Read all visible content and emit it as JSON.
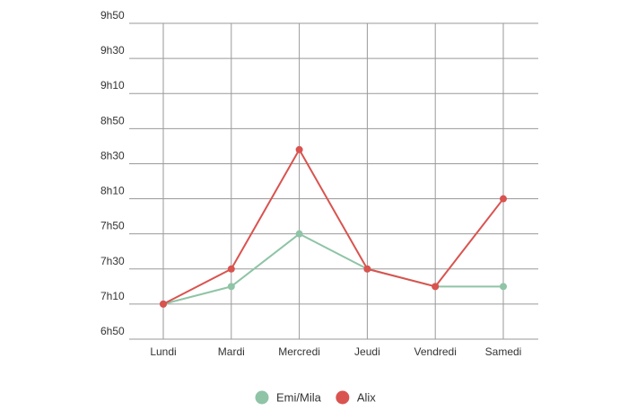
{
  "chart_data": {
    "type": "line",
    "title": "",
    "xlabel": "",
    "ylabel": "",
    "categories": [
      "Lundi",
      "Mardi",
      "Mercredi",
      "Jeudi",
      "Vendredi",
      "Samedi"
    ],
    "y_tick_labels": [
      "6h50",
      "7h10",
      "7h30",
      "7h50",
      "8h10",
      "8h30",
      "8h50",
      "9h10",
      "9h30",
      "9h50"
    ],
    "ylim_minutes": [
      410,
      590
    ],
    "grid": true,
    "legend_position": "bottom-center",
    "series": [
      {
        "name": "Emi/Mila",
        "color": "#8fc4a6",
        "values_minutes": [
          430,
          440,
          470,
          450,
          440,
          440
        ]
      },
      {
        "name": "Alix",
        "color": "#d9534f",
        "values_minutes": [
          430,
          450,
          518,
          450,
          440,
          490
        ]
      }
    ]
  }
}
